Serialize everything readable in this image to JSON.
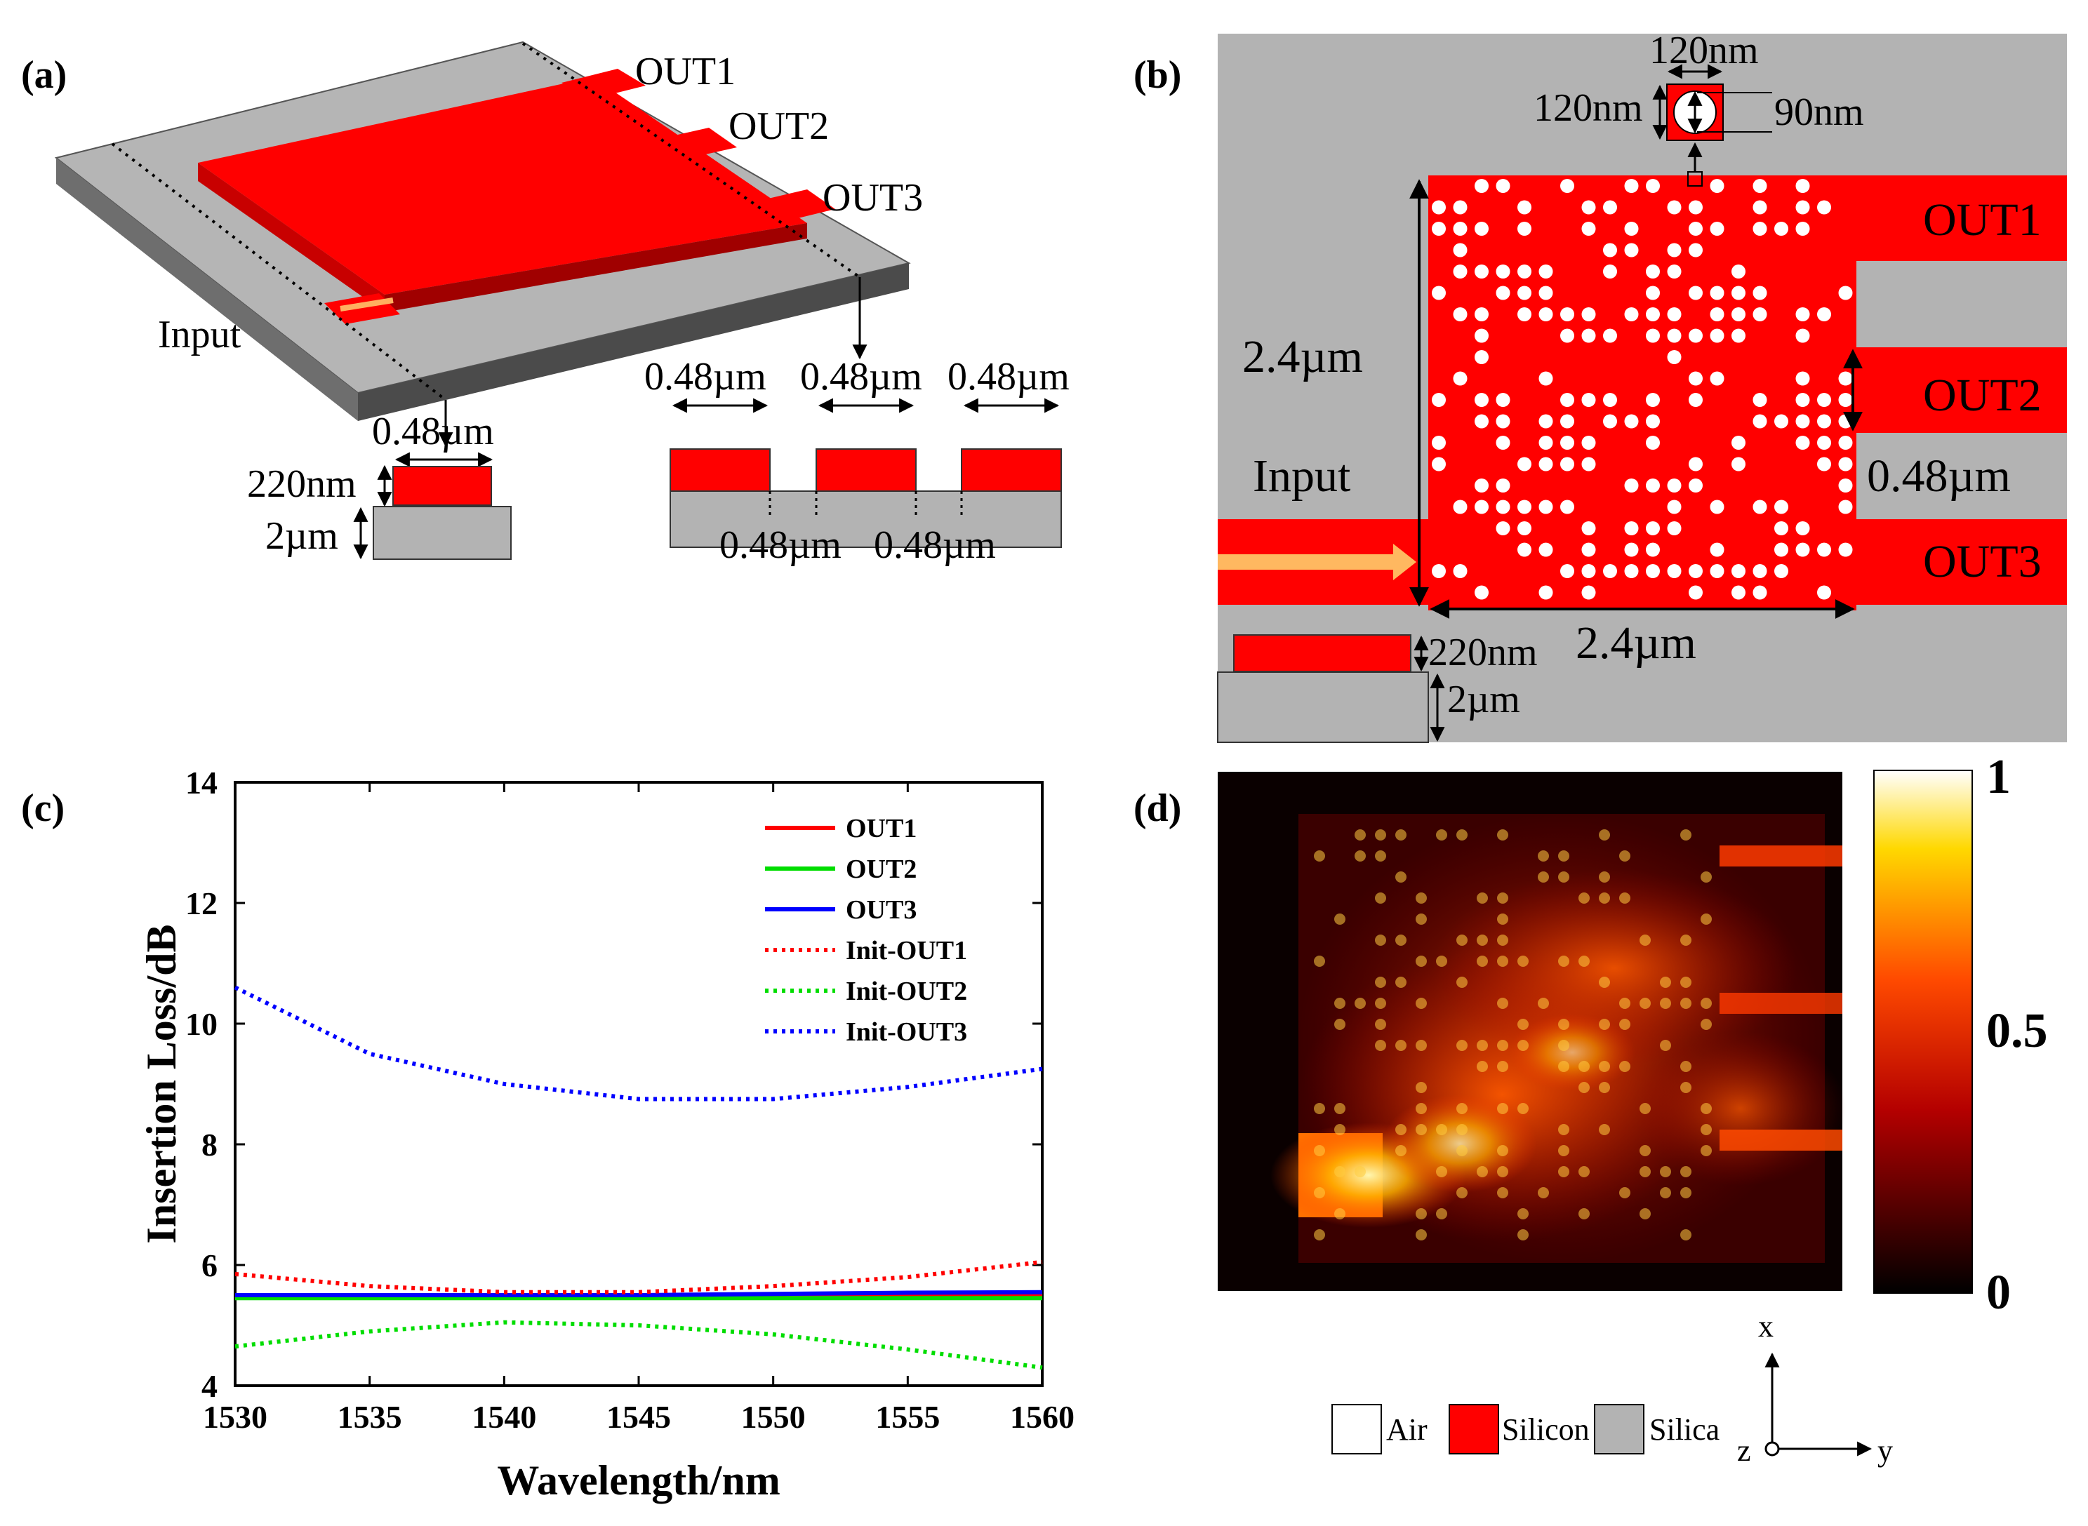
{
  "panels": {
    "a": {
      "label": "(a)",
      "ports": [
        "OUT1",
        "OUT2",
        "OUT3"
      ],
      "input_label": "Input",
      "left_width": "0.48µm",
      "thickness_si": "220nm",
      "thickness_silica": "2µm",
      "right_widths": [
        "0.48µm",
        "0.48µm",
        "0.48µm"
      ],
      "right_gaps": [
        "0.48µm",
        "0.48µm"
      ]
    },
    "b": {
      "label": "(b)",
      "hole_size_h": "120nm",
      "hole_size_v": "120nm",
      "hole_diameter": "90nm",
      "region_height": "2.4µm",
      "region_width": "2.4µm",
      "input_label": "Input",
      "ports": [
        "OUT1",
        "OUT2",
        "OUT3"
      ],
      "port_width": "0.48µm",
      "thickness_si": "220nm",
      "thickness_silica": "2µm"
    },
    "c": {
      "label": "(c)"
    },
    "d": {
      "label": "(d)",
      "colorbar_ticks": [
        "1",
        "0.5",
        "0"
      ],
      "axis_labels": {
        "x": "x",
        "y": "y",
        "z": "z"
      }
    }
  },
  "materials": [
    {
      "name": "Air",
      "color": "#ffffff"
    },
    {
      "name": "Silicon",
      "color": "#ff0000"
    },
    {
      "name": "Silica",
      "color": "#b3b3b3"
    }
  ],
  "chart_data": {
    "type": "line",
    "title": "",
    "xlabel": "Wavelength/nm",
    "ylabel": "Insertion Loss/dB",
    "xlim": [
      1530,
      1560
    ],
    "ylim": [
      4,
      14
    ],
    "xticks": [
      "1530",
      "1535",
      "1540",
      "1545",
      "1550",
      "1555",
      "1560"
    ],
    "yticks": [
      "4",
      "6",
      "8",
      "10",
      "12",
      "14"
    ],
    "legend_position": "top-right",
    "x": [
      1530,
      1535,
      1540,
      1545,
      1550,
      1555,
      1560
    ],
    "series": [
      {
        "name": "OUT1",
        "style": "solid",
        "color": "#ff0000",
        "values": [
          5.5,
          5.5,
          5.5,
          5.5,
          5.5,
          5.5,
          5.5
        ]
      },
      {
        "name": "OUT2",
        "style": "solid",
        "color": "#00dd00",
        "values": [
          5.45,
          5.45,
          5.45,
          5.45,
          5.45,
          5.45,
          5.45
        ]
      },
      {
        "name": "OUT3",
        "style": "solid",
        "color": "#0000ff",
        "values": [
          5.5,
          5.5,
          5.5,
          5.5,
          5.52,
          5.54,
          5.55
        ]
      },
      {
        "name": "Init-OUT1",
        "style": "dotted",
        "color": "#ff0000",
        "values": [
          5.85,
          5.65,
          5.55,
          5.55,
          5.65,
          5.8,
          6.05
        ]
      },
      {
        "name": "Init-OUT2",
        "style": "dotted",
        "color": "#00dd00",
        "values": [
          4.65,
          4.9,
          5.05,
          5.0,
          4.85,
          4.6,
          4.3
        ]
      },
      {
        "name": "Init-OUT3",
        "style": "dotted",
        "color": "#0000ff",
        "values": [
          10.6,
          9.5,
          9.0,
          8.75,
          8.75,
          8.95,
          9.25
        ]
      }
    ]
  }
}
